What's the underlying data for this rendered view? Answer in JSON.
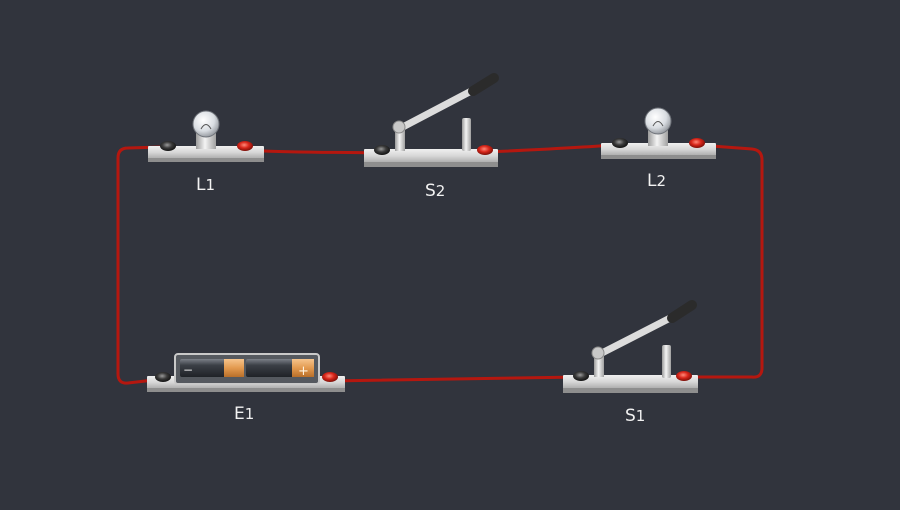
{
  "circuit": {
    "components": [
      {
        "id": "L1",
        "type": "lamp",
        "letter": "L",
        "index": "1"
      },
      {
        "id": "S2",
        "type": "switch",
        "state": "open",
        "letter": "S",
        "index": "2"
      },
      {
        "id": "L2",
        "type": "lamp",
        "letter": "L",
        "index": "2"
      },
      {
        "id": "E1",
        "type": "battery",
        "letter": "E",
        "index": "1",
        "polarity": [
          "−",
          "+"
        ]
      },
      {
        "id": "S1",
        "type": "switch",
        "state": "open",
        "letter": "S",
        "index": "1"
      }
    ],
    "wires": [
      {
        "from": "L1",
        "to": "S2"
      },
      {
        "from": "S2",
        "to": "L2"
      },
      {
        "from": "L2",
        "to": "S1"
      },
      {
        "from": "S1",
        "to": "E1"
      },
      {
        "from": "E1",
        "to": "L1"
      }
    ],
    "colors": {
      "background": "#31343d",
      "wire": "#b5170f",
      "board": "#d9d9d9",
      "terminal_red": "#d8261a",
      "terminal_black": "#3a3a3a",
      "battery_copper": "#e39a4f",
      "switch_handle": "#2b2b2b"
    }
  }
}
